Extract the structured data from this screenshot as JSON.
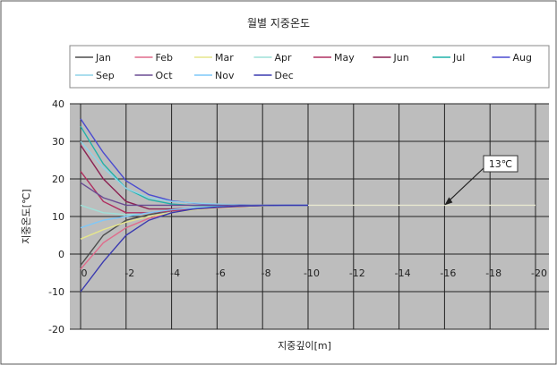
{
  "chart_data": {
    "type": "line",
    "title": "월별 지중온도",
    "xlabel": "지중깊이[m]",
    "ylabel": "지중온도[℃]",
    "xlim": [
      0,
      -20
    ],
    "ylim": [
      -20,
      40
    ],
    "x_ticks": [
      0,
      -2,
      -4,
      -6,
      -8,
      -10,
      -12,
      -14,
      -16,
      -18,
      -20
    ],
    "y_ticks": [
      40,
      30,
      20,
      10,
      0,
      -10,
      -20
    ],
    "grid": true,
    "legend_position": "top",
    "annotation": {
      "text": "13℃",
      "x": -16,
      "y": 13
    },
    "x": [
      0,
      -1,
      -2,
      -3,
      -4,
      -5,
      -6,
      -7,
      -8,
      -9,
      -10
    ],
    "series": [
      {
        "name": "Jan",
        "color": "#4d4d4d",
        "values": [
          -3,
          5,
          9,
          10.5,
          11.5,
          12,
          12.4,
          12.7,
          12.9,
          13,
          13
        ]
      },
      {
        "name": "Feb",
        "color": "#e06b8b",
        "values": [
          -4,
          3,
          7,
          9.5,
          11,
          12,
          12.5,
          12.8,
          12.9,
          13,
          13
        ]
      },
      {
        "name": "Mar",
        "color": "#e6e68c",
        "values": [
          4,
          6.5,
          8.5,
          10,
          11,
          11.8,
          12.3,
          12.6,
          12.8,
          13,
          13
        ]
      },
      {
        "name": "Apr",
        "color": "#9ee0d8",
        "values": [
          13,
          11,
          10.5,
          11,
          11.5,
          12,
          12.4,
          12.7,
          12.9,
          13,
          13
        ]
      },
      {
        "name": "May",
        "color": "#b03060",
        "values": [
          22,
          14,
          11,
          11,
          11.5,
          12,
          12.4,
          12.7,
          12.9,
          13,
          13
        ]
      },
      {
        "name": "Jun",
        "color": "#8b2252",
        "values": [
          29,
          20,
          14,
          12,
          12,
          12.2,
          12.5,
          12.7,
          12.9,
          13,
          13
        ]
      },
      {
        "name": "Jul",
        "color": "#20b2aa",
        "values": [
          34,
          24,
          17.5,
          14.5,
          13.3,
          12.9,
          12.9,
          13,
          13,
          13,
          13
        ]
      },
      {
        "name": "Aug",
        "color": "#4b4bd0",
        "values": [
          36,
          27,
          19.5,
          15.8,
          14.2,
          13.5,
          13.2,
          13.1,
          13,
          13,
          13
        ]
      },
      {
        "name": "Sep",
        "color": "#8fd3e8",
        "values": [
          30,
          23,
          17.5,
          15,
          14,
          13.6,
          13.3,
          13.1,
          13,
          13,
          13
        ]
      },
      {
        "name": "Oct",
        "color": "#6a4c93",
        "values": [
          19,
          15,
          13,
          13,
          13,
          13,
          13,
          13,
          13,
          13,
          13
        ]
      },
      {
        "name": "Nov",
        "color": "#7fc8f8",
        "values": [
          7,
          9,
          10,
          11,
          11.8,
          12.3,
          12.6,
          12.8,
          12.9,
          13,
          13
        ]
      },
      {
        "name": "Dec",
        "color": "#3a3ab0",
        "values": [
          -10,
          -2,
          5,
          9,
          11,
          12,
          12.5,
          12.8,
          12.9,
          13,
          13
        ]
      }
    ]
  }
}
